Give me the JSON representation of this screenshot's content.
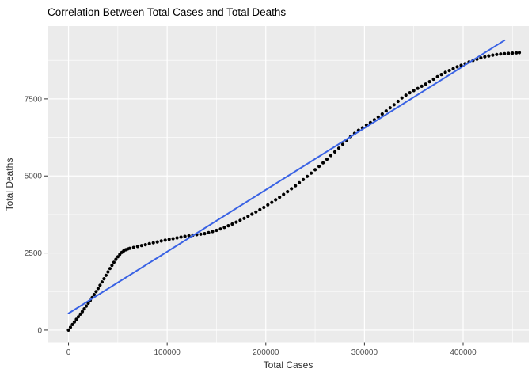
{
  "title": "Correlation Between Total Cases and Total Deaths",
  "chart_data": {
    "type": "scatter",
    "title": "Correlation Between Total Cases and Total Deaths",
    "xlabel": "Total Cases",
    "ylabel": "Total Deaths",
    "legend": "none",
    "grid": true,
    "panel_bg": "#EBEBEB",
    "grid_color": "#FFFFFF",
    "tick_color": "#333333",
    "point_color": "#000000",
    "trend_color": "#3962E4",
    "xlim": [
      -21300,
      466600
    ],
    "ylim": [
      -400,
      9860
    ],
    "x_ticks": [
      0,
      100000,
      200000,
      300000,
      400000
    ],
    "x_tick_labels": [
      "0",
      "100000",
      "200000",
      "300000",
      "400000"
    ],
    "x_minor_ticks": [
      50000,
      150000,
      250000,
      350000,
      450000
    ],
    "y_ticks": [
      0,
      2500,
      5000,
      7500
    ],
    "y_tick_labels": [
      "0",
      "2500",
      "5000",
      "7500"
    ],
    "y_minor_ticks": [
      1250,
      3750,
      6250,
      8750
    ],
    "trend_line": {
      "type": "linear_fit",
      "x": [
        0,
        442000
      ],
      "y": [
        540,
        9400
      ]
    },
    "points": [
      [
        0,
        0
      ],
      [
        2000,
        90
      ],
      [
        4000,
        180
      ],
      [
        6000,
        265
      ],
      [
        8000,
        350
      ],
      [
        10000,
        430
      ],
      [
        12000,
        515
      ],
      [
        14000,
        600
      ],
      [
        16000,
        690
      ],
      [
        18000,
        780
      ],
      [
        20000,
        870
      ],
      [
        22000,
        960
      ],
      [
        24000,
        1055
      ],
      [
        26000,
        1150
      ],
      [
        28000,
        1250
      ],
      [
        30000,
        1350
      ],
      [
        32000,
        1455
      ],
      [
        34000,
        1560
      ],
      [
        36000,
        1665
      ],
      [
        38000,
        1775
      ],
      [
        40000,
        1885
      ],
      [
        42000,
        1995
      ],
      [
        44000,
        2100
      ],
      [
        46000,
        2200
      ],
      [
        48000,
        2295
      ],
      [
        50000,
        2380
      ],
      [
        52000,
        2455
      ],
      [
        54000,
        2520
      ],
      [
        56000,
        2570
      ],
      [
        58000,
        2605
      ],
      [
        60000,
        2630
      ],
      [
        62000,
        2650
      ],
      [
        66000,
        2680
      ],
      [
        70000,
        2710
      ],
      [
        74000,
        2740
      ],
      [
        78000,
        2770
      ],
      [
        82000,
        2800
      ],
      [
        86000,
        2830
      ],
      [
        90000,
        2860
      ],
      [
        94000,
        2890
      ],
      [
        98000,
        2915
      ],
      [
        102000,
        2940
      ],
      [
        106000,
        2965
      ],
      [
        110000,
        2990
      ],
      [
        114000,
        3015
      ],
      [
        118000,
        3040
      ],
      [
        122000,
        3060
      ],
      [
        126000,
        3080
      ],
      [
        130000,
        3095
      ],
      [
        134000,
        3110
      ],
      [
        138000,
        3130
      ],
      [
        142000,
        3160
      ],
      [
        146000,
        3195
      ],
      [
        150000,
        3235
      ],
      [
        154000,
        3280
      ],
      [
        158000,
        3330
      ],
      [
        162000,
        3385
      ],
      [
        166000,
        3440
      ],
      [
        170000,
        3500
      ],
      [
        174000,
        3560
      ],
      [
        178000,
        3625
      ],
      [
        182000,
        3690
      ],
      [
        186000,
        3760
      ],
      [
        190000,
        3830
      ],
      [
        194000,
        3905
      ],
      [
        198000,
        3980
      ],
      [
        202000,
        4060
      ],
      [
        206000,
        4140
      ],
      [
        210000,
        4225
      ],
      [
        214000,
        4310
      ],
      [
        218000,
        4400
      ],
      [
        222000,
        4490
      ],
      [
        226000,
        4585
      ],
      [
        230000,
        4680
      ],
      [
        234000,
        4780
      ],
      [
        238000,
        4880
      ],
      [
        242000,
        4985
      ],
      [
        246000,
        5090
      ],
      [
        250000,
        5200
      ],
      [
        254000,
        5310
      ],
      [
        258000,
        5425
      ],
      [
        262000,
        5540
      ],
      [
        266000,
        5660
      ],
      [
        270000,
        5780
      ],
      [
        274000,
        5900
      ],
      [
        278000,
        6025
      ],
      [
        282000,
        6150
      ],
      [
        286000,
        6275
      ],
      [
        290000,
        6380
      ],
      [
        294000,
        6480
      ],
      [
        298000,
        6560
      ],
      [
        302000,
        6650
      ],
      [
        306000,
        6730
      ],
      [
        310000,
        6820
      ],
      [
        314000,
        6910
      ],
      [
        318000,
        7010
      ],
      [
        322000,
        7110
      ],
      [
        326000,
        7210
      ],
      [
        330000,
        7310
      ],
      [
        334000,
        7420
      ],
      [
        338000,
        7530
      ],
      [
        342000,
        7620
      ],
      [
        346000,
        7700
      ],
      [
        350000,
        7770
      ],
      [
        354000,
        7840
      ],
      [
        358000,
        7910
      ],
      [
        362000,
        7980
      ],
      [
        366000,
        8060
      ],
      [
        370000,
        8140
      ],
      [
        374000,
        8220
      ],
      [
        378000,
        8290
      ],
      [
        382000,
        8360
      ],
      [
        386000,
        8420
      ],
      [
        390000,
        8480
      ],
      [
        394000,
        8540
      ],
      [
        398000,
        8590
      ],
      [
        402000,
        8645
      ],
      [
        406000,
        8700
      ],
      [
        410000,
        8745
      ],
      [
        414000,
        8790
      ],
      [
        418000,
        8830
      ],
      [
        422000,
        8865
      ],
      [
        426000,
        8895
      ],
      [
        430000,
        8920
      ],
      [
        434000,
        8940
      ],
      [
        438000,
        8955
      ],
      [
        442000,
        8965
      ],
      [
        446000,
        8975
      ],
      [
        450000,
        8985
      ],
      [
        454000,
        8992
      ],
      [
        457000,
        9000
      ]
    ]
  }
}
